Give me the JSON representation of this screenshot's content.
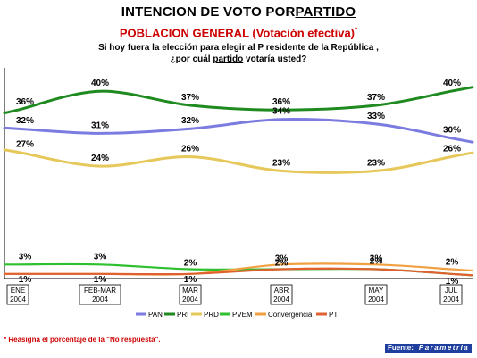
{
  "header": {
    "title_prefix": "INTENCION DE VOTO POR",
    "title_underlined": "PARTIDO",
    "subtitle": "POBLACION GENERAL (Votación efectiva)",
    "subtitle_mark": "*",
    "question_line1": "Si hoy fuera la elección para elegir al P  residente de la República  ,",
    "question_line2_prefix": "¿por cuál ",
    "question_line2_underlined": "partido",
    "question_line2_suffix": "  votaría usted?"
  },
  "footer": {
    "footnote": "* Reasigna el porcentaje de la \"No respuesta\".",
    "source_label": "Fuente:",
    "source_name": "Parametria"
  },
  "chart_data": {
    "type": "line",
    "categories": [
      "ENE 2004",
      "FEB-MAR 2004",
      "MAR 2004",
      "ABR 2004",
      "MAY 2004",
      "JUL 2004"
    ],
    "category_lines": [
      [
        "ENE",
        "2004"
      ],
      [
        "FEB-MAR",
        "2004"
      ],
      [
        "MAR",
        "2004"
      ],
      [
        "ABR",
        "2004"
      ],
      [
        "MAY",
        "2004"
      ],
      [
        "JUL",
        "2004"
      ]
    ],
    "ylim": [
      0,
      45
    ],
    "grid": false,
    "legend_position": "bottom",
    "series": [
      {
        "name": "PAN",
        "color": "#7b7be0",
        "values": [
          32,
          31,
          32,
          34,
          33,
          30
        ],
        "labels": [
          "32%",
          "31%",
          "32%",
          "34%",
          "33%",
          "30%"
        ]
      },
      {
        "name": "PRI",
        "color": "#1f8a1f",
        "values": [
          36,
          40,
          37,
          36,
          37,
          40
        ],
        "labels": [
          "36%",
          "40%",
          "37%",
          "36%",
          "37%",
          "40%"
        ]
      },
      {
        "name": "PRD",
        "color": "#e6c85a",
        "values": [
          27,
          24,
          26,
          23,
          23,
          26
        ],
        "labels": [
          "27%",
          "24%",
          "26%",
          "23%",
          "23%",
          "26%"
        ]
      },
      {
        "name": "PVEM",
        "color": "#2ec02e",
        "values": [
          3,
          3,
          2,
          2,
          2,
          1
        ],
        "labels": [
          "3%",
          "3%",
          "2%",
          "2%",
          "2%",
          "1%"
        ]
      },
      {
        "name": "Convergencia",
        "color": "#f0a040",
        "values": [
          1,
          1,
          1,
          3,
          3,
          2
        ],
        "labels": [
          "1%",
          "1%",
          "1%",
          "3%",
          "3%",
          "2%"
        ]
      },
      {
        "name": "PT",
        "color": "#e06030",
        "values": [
          1,
          1,
          1,
          2,
          2,
          1
        ],
        "labels": [
          "",
          "",
          "",
          "",
          "",
          ""
        ]
      }
    ]
  }
}
